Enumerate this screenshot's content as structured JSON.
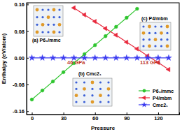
{
  "chart_data": {
    "type": "line",
    "x_label": "Pressure",
    "y_label": "Enthalpy (eV/atom)",
    "xlim": [
      -5,
      140
    ],
    "xticks": [
      0,
      30,
      60,
      90,
      120
    ],
    "ylim": [
      -0.17,
      0.165
    ],
    "yticks": [
      -0.16,
      -0.08,
      {
        "value": 0,
        "label": "0.00"
      },
      0.08,
      0.16
    ],
    "legend": "lower right",
    "annotations": [
      "46 GPa",
      "113 GPa"
    ],
    "insets": [
      "(a) P6₃/mmc",
      "(b) Cmc2₁",
      "(c) P4/mbm"
    ],
    "series": [
      {
        "name": "P6₃/mmc",
        "color": "#2ec52e",
        "marker": "circle",
        "x": [
          0,
          10,
          20,
          30,
          40,
          50,
          60,
          70,
          80,
          90,
          100
        ],
        "values": [
          -0.125,
          -0.098,
          -0.071,
          -0.043,
          -0.016,
          0.011,
          0.038,
          0.065,
          0.093,
          0.12,
          0.147
        ]
      },
      {
        "name": "P4/mbm",
        "color": "#e8283c",
        "marker": "triangle-left",
        "x": [
          40,
          50,
          60,
          70,
          80,
          90,
          100,
          110,
          120,
          130
        ],
        "values": [
          0.15,
          0.129,
          0.109,
          0.088,
          0.068,
          0.047,
          0.027,
          0.006,
          -0.014,
          -0.035
        ]
      },
      {
        "name": "Cmc2₁",
        "color": "#3a3af0",
        "marker": "star",
        "x": [
          0,
          10,
          20,
          30,
          40,
          50,
          60,
          70,
          80,
          90,
          100,
          110,
          120,
          130
        ],
        "values": [
          0,
          0,
          0,
          0,
          0,
          0,
          0,
          0,
          0,
          0,
          0,
          0,
          0,
          0
        ]
      }
    ]
  }
}
